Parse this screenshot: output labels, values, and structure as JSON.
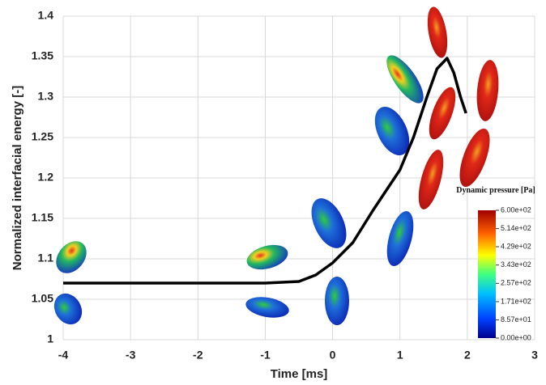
{
  "chart_data": {
    "type": "line",
    "x_label": "Time [ms]",
    "y_label": "Normalized interfacial energy [-]",
    "xlim": [
      -4,
      3
    ],
    "xticks": [
      -4,
      -3,
      -2,
      -1,
      0,
      1,
      2,
      3
    ],
    "ylim": [
      1,
      1.4
    ],
    "yticks": [
      1,
      1.05,
      1.1,
      1.15,
      1.2,
      1.25,
      1.3,
      1.35,
      1.4
    ],
    "grid": true,
    "series": [
      {
        "color": "#000000",
        "x": [
          -4,
          -3,
          -2,
          -1,
          -0.5,
          -0.25,
          0,
          0.3,
          0.6,
          1,
          1.2,
          1.4,
          1.55,
          1.7,
          1.8,
          1.9,
          1.98
        ],
        "values": [
          1.07,
          1.07,
          1.07,
          1.07,
          1.072,
          1.08,
          1.095,
          1.12,
          1.16,
          1.21,
          1.25,
          1.3,
          1.335,
          1.348,
          1.33,
          1.3,
          1.28
        ]
      }
    ],
    "colorbar": {
      "title": "Dynamic pressure [Pa]",
      "lim": [
        0,
        600
      ],
      "ticks": [
        {
          "value": 0,
          "label": "0.00e+00"
        },
        {
          "value": 85.7,
          "label": "8.57e+01"
        },
        {
          "value": 171,
          "label": "1.71e+02"
        },
        {
          "value": 257,
          "label": "2.57e+02"
        },
        {
          "value": 343,
          "label": "3.43e+02"
        },
        {
          "value": 429,
          "label": "4.29e+02"
        },
        {
          "value": 514,
          "label": "5.14e+02"
        },
        {
          "value": 600,
          "label": "6.00e+02"
        }
      ]
    }
  }
}
